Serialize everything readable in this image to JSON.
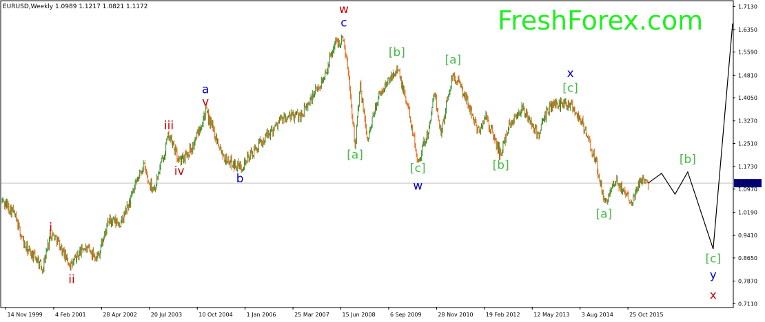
{
  "chart_data": {
    "type": "line",
    "title": "EURUSD,Weekly  1.0989 1.1217 1.0821 1.1172",
    "watermark": "FreshForex.com",
    "y_ticks": [
      "1.7130",
      "1.6350",
      "1.5590",
      "1.4810",
      "1.4050",
      "1.3270",
      "1.2510",
      "1.1730",
      "1.0970",
      "1.0190",
      "0.9410",
      "0.8650",
      "0.7870",
      "0.7110"
    ],
    "y_values": [
      1.713,
      1.635,
      1.559,
      1.481,
      1.405,
      1.327,
      1.251,
      1.173,
      1.097,
      1.019,
      0.941,
      0.865,
      0.787,
      0.711
    ],
    "ylim": [
      0.7,
      1.73
    ],
    "current_price_label": "1.1172",
    "current_price": 1.1172,
    "x_ticks": [
      "14 Nov 1999",
      "4 Feb 2001",
      "28 Apr 2002",
      "20 Jul 2003",
      "10 Oct 2004",
      "1 Jan 2006",
      "25 Mar 2007",
      "15 Jun 2008",
      "6 Sep 2009",
      "28 Nov 2010",
      "19 Feb 2012",
      "12 May 2013",
      "3 Aug 2014",
      "25 Oct 2015"
    ],
    "x_tick_dates": [
      "1999-11-14",
      "2001-02-04",
      "2002-04-28",
      "2003-07-20",
      "2004-10-10",
      "2006-01-01",
      "2007-03-25",
      "2008-06-15",
      "2009-09-06",
      "2010-11-28",
      "2012-02-19",
      "2013-05-12",
      "2014-08-03",
      "2015-10-25"
    ],
    "xlim": [
      "1999-10-03",
      "2018-07-01"
    ],
    "price_path": [
      {
        "date": "1999-10-03",
        "value": 1.06
      },
      {
        "date": "2000-01-23",
        "value": 1.02
      },
      {
        "date": "2000-05-14",
        "value": 0.9
      },
      {
        "date": "2000-09-03",
        "value": 0.86
      },
      {
        "date": "2000-10-22",
        "value": 0.83
      },
      {
        "date": "2001-01-07",
        "value": 0.95
      },
      {
        "date": "2001-03-04",
        "value": 0.93
      },
      {
        "date": "2001-06-03",
        "value": 0.86
      },
      {
        "date": "2001-07-22",
        "value": 0.84
      },
      {
        "date": "2001-11-04",
        "value": 0.9
      },
      {
        "date": "2002-03-24",
        "value": 0.87
      },
      {
        "date": "2002-07-07",
        "value": 0.99
      },
      {
        "date": "2002-10-27",
        "value": 0.98
      },
      {
        "date": "2003-02-02",
        "value": 1.07
      },
      {
        "date": "2003-05-25",
        "value": 1.18
      },
      {
        "date": "2003-07-13",
        "value": 1.12
      },
      {
        "date": "2003-09-07",
        "value": 1.1
      },
      {
        "date": "2004-01-18",
        "value": 1.28
      },
      {
        "date": "2004-04-25",
        "value": 1.19
      },
      {
        "date": "2004-08-29",
        "value": 1.24
      },
      {
        "date": "2004-12-26",
        "value": 1.36
      },
      {
        "date": "2005-06-26",
        "value": 1.2
      },
      {
        "date": "2005-11-13",
        "value": 1.17
      },
      {
        "date": "2006-04-30",
        "value": 1.24
      },
      {
        "date": "2006-11-26",
        "value": 1.33
      },
      {
        "date": "2007-06-17",
        "value": 1.35
      },
      {
        "date": "2008-01-06",
        "value": 1.47
      },
      {
        "date": "2008-04-20",
        "value": 1.59
      },
      {
        "date": "2008-07-13",
        "value": 1.6
      },
      {
        "date": "2008-08-31",
        "value": 1.47
      },
      {
        "date": "2008-10-26",
        "value": 1.25
      },
      {
        "date": "2008-12-14",
        "value": 1.44
      },
      {
        "date": "2009-02-22",
        "value": 1.26
      },
      {
        "date": "2009-05-24",
        "value": 1.4
      },
      {
        "date": "2009-11-22",
        "value": 1.51
      },
      {
        "date": "2010-03-21",
        "value": 1.35
      },
      {
        "date": "2010-06-06",
        "value": 1.19
      },
      {
        "date": "2010-09-19",
        "value": 1.3
      },
      {
        "date": "2010-11-07",
        "value": 1.42
      },
      {
        "date": "2011-01-09",
        "value": 1.29
      },
      {
        "date": "2011-05-01",
        "value": 1.49
      },
      {
        "date": "2011-09-04",
        "value": 1.4
      },
      {
        "date": "2011-12-25",
        "value": 1.29
      },
      {
        "date": "2012-03-04",
        "value": 1.34
      },
      {
        "date": "2012-07-22",
        "value": 1.21
      },
      {
        "date": "2012-09-30",
        "value": 1.31
      },
      {
        "date": "2013-02-03",
        "value": 1.37
      },
      {
        "date": "2013-07-07",
        "value": 1.28
      },
      {
        "date": "2013-10-27",
        "value": 1.38
      },
      {
        "date": "2014-05-04",
        "value": 1.39
      },
      {
        "date": "2014-08-24",
        "value": 1.32
      },
      {
        "date": "2015-01-04",
        "value": 1.18
      },
      {
        "date": "2015-03-15",
        "value": 1.05
      },
      {
        "date": "2015-07-12",
        "value": 1.12
      },
      {
        "date": "2015-11-29",
        "value": 1.06
      },
      {
        "date": "2016-03-13",
        "value": 1.14
      },
      {
        "date": "2016-05-01",
        "value": 1.117
      }
    ],
    "forecast_path": [
      {
        "date": "2016-05-01",
        "value": 1.117
      },
      {
        "date": "2016-09-04",
        "value": 1.15
      },
      {
        "date": "2017-01-08",
        "value": 1.08
      },
      {
        "date": "2017-05-07",
        "value": 1.155
      },
      {
        "date": "2017-12-31",
        "value": 0.895
      },
      {
        "date": "2018-07-01",
        "value": 1.655
      }
    ],
    "wave_labels": [
      {
        "text": "i",
        "date": "2001-01-07",
        "value": 0.955,
        "color": "#cc0000"
      },
      {
        "text": "ii",
        "date": "2001-07-22",
        "value": 0.78,
        "color": "#cc0000"
      },
      {
        "text": "iii",
        "date": "2004-01-18",
        "value": 1.298,
        "color": "#cc0000"
      },
      {
        "text": "iv",
        "date": "2004-04-25",
        "value": 1.145,
        "color": "#cc0000"
      },
      {
        "text": "v",
        "date": "2004-12-26",
        "value": 1.378,
        "color": "#cc0000"
      },
      {
        "text": "a",
        "date": "2004-12-26",
        "value": 1.42,
        "color": "#0000cc"
      },
      {
        "text": "b",
        "date": "2005-11-13",
        "value": 1.12,
        "color": "#0000cc"
      },
      {
        "text": "w",
        "date": "2008-07-13",
        "value": 1.69,
        "color": "#cc0000"
      },
      {
        "text": "c",
        "date": "2008-07-13",
        "value": 1.645,
        "color": "#0000cc"
      },
      {
        "text": "[a]",
        "date": "2008-10-26",
        "value": 1.2,
        "color": "#44bb44"
      },
      {
        "text": "[b]",
        "date": "2009-11-22",
        "value": 1.545,
        "color": "#44bb44"
      },
      {
        "text": "[c]",
        "date": "2010-06-06",
        "value": 1.155,
        "color": "#44bb44"
      },
      {
        "text": "w",
        "date": "2010-06-06",
        "value": 1.095,
        "color": "#0000cc"
      },
      {
        "text": "[a]",
        "date": "2011-05-01",
        "value": 1.52,
        "color": "#44bb44"
      },
      {
        "text": "[b]",
        "date": "2012-07-22",
        "value": 1.165,
        "color": "#44bb44"
      },
      {
        "text": "x",
        "date": "2014-05-04",
        "value": 1.475,
        "color": "#0000cc"
      },
      {
        "text": "[c]",
        "date": "2014-05-04",
        "value": 1.425,
        "color": "#44bb44"
      },
      {
        "text": "[a]",
        "date": "2015-03-15",
        "value": 1.0,
        "color": "#44bb44"
      },
      {
        "text": "[b]",
        "date": "2017-05-07",
        "value": 1.185,
        "color": "#44bb44"
      },
      {
        "text": "[c]",
        "date": "2017-12-31",
        "value": 0.85,
        "color": "#44bb44"
      },
      {
        "text": "y",
        "date": "2017-12-31",
        "value": 0.795,
        "color": "#0000cc"
      },
      {
        "text": "x",
        "date": "2017-12-31",
        "value": 0.727,
        "color": "#cc0000"
      }
    ],
    "colors": {
      "up": "#2e8b22",
      "down": "#e0620a",
      "forecast": "#000000",
      "watermark": "#22ee22",
      "price_label_bg": "#000080",
      "price_line": "#c0c0c0"
    },
    "grid": false
  }
}
